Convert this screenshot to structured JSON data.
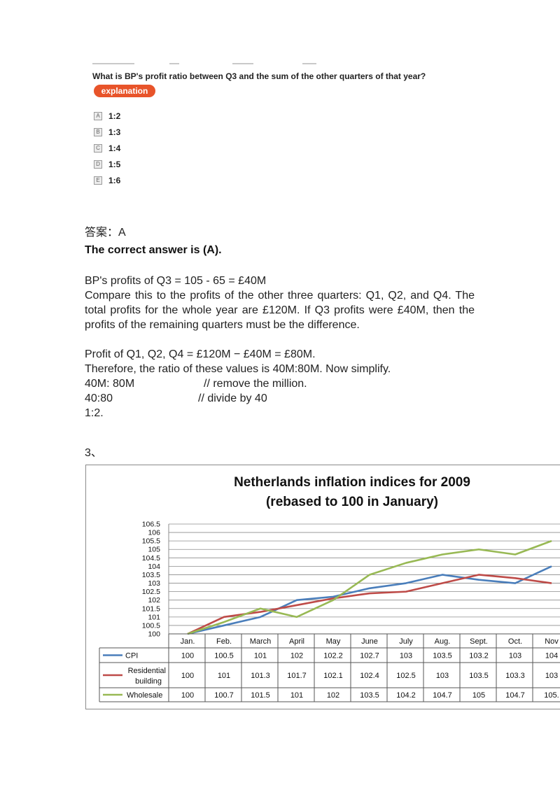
{
  "question": {
    "text": "What is BP's profit ratio between Q3 and the sum of the other quarters of that year?",
    "explanation_button": "explanation",
    "options": [
      {
        "letter": "A",
        "text": "1:2"
      },
      {
        "letter": "B",
        "text": "1:3"
      },
      {
        "letter": "C",
        "text": "1:4"
      },
      {
        "letter": "D",
        "text": "1:5"
      },
      {
        "letter": "E",
        "text": "1:6"
      }
    ]
  },
  "answer": {
    "label": "答案：A",
    "correct": "The correct answer is (A)."
  },
  "explanation": {
    "p1": "BP's profits of Q3 = 105 - 65 = £40M",
    "p2": "Compare this to the profits of the other three quarters: Q1, Q2, and Q4. The total profits for the whole year are £120M. If Q3 profits were £40M, then the profits of the remaining quarters must be the difference.",
    "p3": "Profit of Q1, Q2, Q4 = £120M − £40M = £80M.",
    "p4": "Therefore, the ratio of these values is 40M:80M. Now simplify.",
    "step1": "40M: 80M",
    "step1_comment": "// remove the million.",
    "step2": "40:80",
    "step2_comment": "// divide by 40",
    "step3": "1:2."
  },
  "question_number": "3、",
  "chart_data": {
    "type": "line",
    "title_line1": "Netherlands inflation indices for 2009",
    "title_line2": "(rebased to 100 in January)",
    "categories": [
      "Jan.",
      "Feb.",
      "March",
      "April",
      "May",
      "June",
      "July",
      "Aug.",
      "Sept.",
      "Oct.",
      "Nov"
    ],
    "y_ticks": [
      "100",
      "100.5",
      "101",
      "101.5",
      "102",
      "102.5",
      "103",
      "103.5",
      "104",
      "104.5",
      "105",
      "105.5",
      "106",
      "106.5"
    ],
    "ylim": [
      100,
      106.5
    ],
    "grid": true,
    "series": [
      {
        "name": "CPI",
        "color": "#4a7ebb",
        "values": [
          100,
          100.5,
          101,
          102,
          102.2,
          102.7,
          103,
          103.5,
          103.2,
          103,
          104
        ],
        "labels": [
          "100",
          "100.5",
          "101",
          "102",
          "102.2",
          "102.7",
          "103",
          "103.5",
          "103.2",
          "103",
          "104"
        ]
      },
      {
        "name": "Residential building",
        "name_line1": "Residential",
        "name_line2": "building",
        "color": "#be4b48",
        "values": [
          100,
          101,
          101.3,
          101.7,
          102.1,
          102.4,
          102.5,
          103,
          103.5,
          103.3,
          103
        ],
        "labels": [
          "100",
          "101",
          "101.3",
          "101.7",
          "102.1",
          "102.4",
          "102.5",
          "103",
          "103.5",
          "103.3",
          "103"
        ]
      },
      {
        "name": "Wholesale",
        "color": "#98b954",
        "values": [
          100,
          100.7,
          101.5,
          101,
          102,
          103.5,
          104.2,
          104.7,
          105,
          104.7,
          105.5
        ],
        "labels": [
          "100",
          "100.7",
          "101.5",
          "101",
          "102",
          "103.5",
          "104.2",
          "104.7",
          "105",
          "104.7",
          "105."
        ]
      }
    ]
  }
}
